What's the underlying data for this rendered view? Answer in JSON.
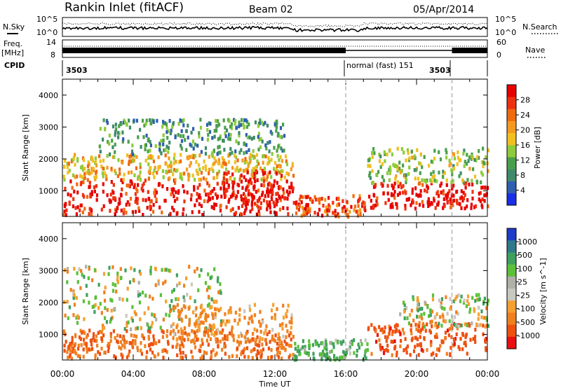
{
  "header": {
    "station": "Rankin Inlet (fitACF)",
    "beam": "Beam 02",
    "date": "05/Apr/2014"
  },
  "noise_panel": {
    "left_label": "N.Sky",
    "right_label": "N.Search",
    "tick_top": "10^5",
    "tick_bottom": "10^0"
  },
  "freq_panel": {
    "left_label_1": "Freq.",
    "left_label_2": "[MHz]",
    "left_top": "14",
    "left_bottom": "8",
    "right_label": "Nave",
    "right_top": "60",
    "right_bottom": "0"
  },
  "cpid": {
    "label": "CPID",
    "segments": [
      "3503",
      "normal (fast) 151",
      "3503"
    ]
  },
  "chart_data": [
    {
      "type": "heatmap",
      "name": "power",
      "ylabel": "Slant Range [km]",
      "ylim": [
        200,
        4500
      ],
      "yticks": [
        1000,
        2000,
        3000,
        4000
      ],
      "colorbar": {
        "label": "Power [dB]",
        "ticks": [
          "4",
          "8",
          "12",
          "16",
          "20",
          "24",
          "28"
        ],
        "colors": [
          "#1a2ee8",
          "#2f5fb0",
          "#3f8a6a",
          "#4aa04a",
          "#8ecb3a",
          "#f0c020",
          "#f59a20",
          "#f06a10",
          "#ee3010",
          "#e60000"
        ]
      },
      "bands": [
        {
          "t": [
            0,
            13
          ],
          "r": [
            300,
            1400
          ],
          "level": 0.92
        },
        {
          "t": [
            0,
            13
          ],
          "r": [
            1400,
            2200
          ],
          "level": 0.6
        },
        {
          "t": [
            2,
            12.5
          ],
          "r": [
            2200,
            3300
          ],
          "level": 0.3
        },
        {
          "t": [
            9,
            12.5
          ],
          "r": [
            600,
            1700
          ],
          "level": 0.97
        },
        {
          "t": [
            13,
            17.2
          ],
          "r": [
            250,
            900
          ],
          "level": 0.78
        },
        {
          "t": [
            17.2,
            24
          ],
          "r": [
            500,
            1300
          ],
          "level": 0.95
        },
        {
          "t": [
            17.2,
            24
          ],
          "r": [
            1300,
            2400
          ],
          "level": 0.45
        }
      ]
    },
    {
      "type": "heatmap",
      "name": "velocity",
      "xlabel": "Time UT",
      "ylabel": "Slant Range [km]",
      "ylim": [
        200,
        4500
      ],
      "yticks": [
        1000,
        2000,
        3000,
        4000
      ],
      "x_ticks": [
        "00:00",
        "04:00",
        "08:00",
        "12:00",
        "16:00",
        "20:00",
        "00:00"
      ],
      "xlim": [
        0,
        24
      ],
      "colorbar": {
        "label": "Velocity [m s^-1]",
        "ticks": [
          "1000",
          "500",
          "100",
          "25",
          "-25",
          "-100",
          "-500",
          "-1000"
        ],
        "colors": [
          "#1e3cc8",
          "#2f7a8a",
          "#3fa060",
          "#5cc03a",
          "#b0b0a8",
          "#c8c8c0",
          "#f5a030",
          "#f08020",
          "#ee5010",
          "#e81010"
        ]
      },
      "bands": [
        {
          "t": [
            0,
            13
          ],
          "r": [
            300,
            1200
          ],
          "v": -300
        },
        {
          "t": [
            0,
            9
          ],
          "r": [
            1200,
            3200
          ],
          "v": 0
        },
        {
          "t": [
            6,
            13
          ],
          "r": [
            800,
            2000
          ],
          "v": -150
        },
        {
          "t": [
            13,
            17.2
          ],
          "r": [
            250,
            900
          ],
          "v": 120
        },
        {
          "t": [
            17.2,
            24
          ],
          "r": [
            400,
            1400
          ],
          "v": -400
        },
        {
          "t": [
            19,
            24
          ],
          "r": [
            1300,
            2300
          ],
          "v": 0
        }
      ]
    }
  ],
  "mode_lines_hours": [
    16,
    22
  ],
  "colors": {
    "frame": "#000000",
    "mode_line": "#999999"
  }
}
